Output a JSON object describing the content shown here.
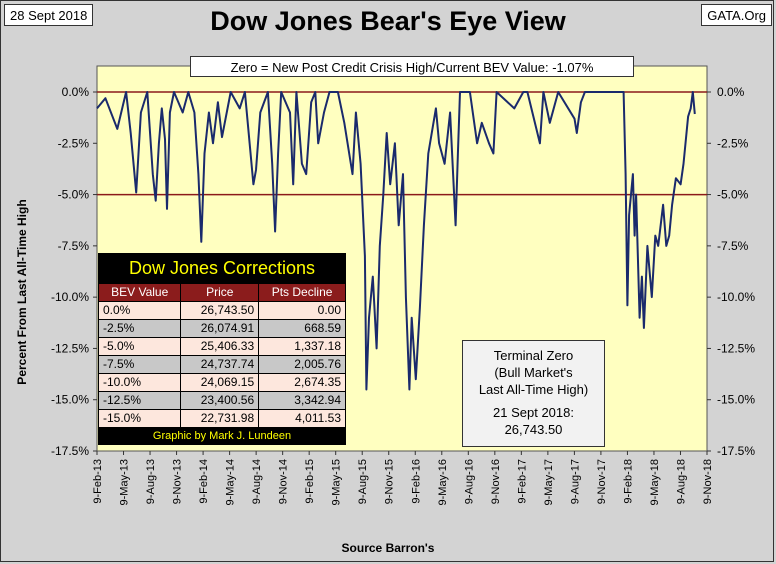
{
  "header": {
    "date": "28 Sept 2018",
    "title": "Dow Jones Bear's Eye View",
    "site": "GATA.Org",
    "subtitle": "Zero = New Post Credit Crisis High/Current BEV Value:  -1.07%"
  },
  "chart_data": {
    "type": "line",
    "title": "Dow Jones Bear's Eye View",
    "ylabel": "Percent From Last All-Time High",
    "xlabel": "Source Barron's",
    "ylim": [
      -17.5,
      0
    ],
    "yticks": [
      0,
      -2.5,
      -5,
      -7.5,
      -10,
      -12.5,
      -15,
      -17.5
    ],
    "ytick_labels": [
      "0.0%",
      "-2.5%",
      "-5.0%",
      "-7.5%",
      "-10.0%",
      "-12.5%",
      "-15.0%",
      "-17.5%"
    ],
    "xtick_labels": [
      "9-Feb-13",
      "9-May-13",
      "9-Aug-13",
      "9-Nov-13",
      "9-Feb-14",
      "9-May-14",
      "9-Aug-14",
      "9-Nov-14",
      "9-Feb-15",
      "9-May-15",
      "9-Aug-15",
      "9-Nov-15",
      "9-Feb-16",
      "9-May-16",
      "9-Aug-16",
      "9-Nov-16",
      "9-Feb-17",
      "9-May-17",
      "9-Aug-17",
      "9-Nov-17",
      "9-Feb-18",
      "9-May-18",
      "9-Aug-18",
      "9-Nov-18"
    ],
    "xlim": [
      "2013-02-09",
      "2018-11-09"
    ],
    "reference_lines": [
      0,
      -5
    ],
    "grid": false,
    "colors": {
      "background": "#ffffc0",
      "line": "#1a2a6c",
      "reference": "#8b1a1a"
    },
    "series": [
      {
        "values": [
          [
            "2013-02-09",
            -0.8
          ],
          [
            "2013-03-10",
            -0.3
          ],
          [
            "2013-04-20",
            -1.8
          ],
          [
            "2013-05-20",
            0
          ],
          [
            "2013-06-05",
            -2.0
          ],
          [
            "2013-06-24",
            -4.9
          ],
          [
            "2013-07-10",
            -1.0
          ],
          [
            "2013-08-01",
            0
          ],
          [
            "2013-08-20",
            -4.0
          ],
          [
            "2013-08-30",
            -5.3
          ],
          [
            "2013-09-10",
            -2.5
          ],
          [
            "2013-09-20",
            -0.8
          ],
          [
            "2013-10-01",
            -2.3
          ],
          [
            "2013-10-08",
            -5.7
          ],
          [
            "2013-10-18",
            -1.0
          ],
          [
            "2013-11-01",
            0
          ],
          [
            "2013-12-01",
            -1.0
          ],
          [
            "2013-12-20",
            0
          ],
          [
            "2014-01-10",
            -1.0
          ],
          [
            "2014-01-24",
            -4.0
          ],
          [
            "2014-02-03",
            -7.3
          ],
          [
            "2014-02-14",
            -3.0
          ],
          [
            "2014-03-01",
            -1.0
          ],
          [
            "2014-03-15",
            -2.5
          ],
          [
            "2014-04-01",
            -0.5
          ],
          [
            "2014-04-15",
            -2.2
          ],
          [
            "2014-05-15",
            0
          ],
          [
            "2014-06-15",
            -0.8
          ],
          [
            "2014-07-03",
            0
          ],
          [
            "2014-08-01",
            -4.5
          ],
          [
            "2014-08-10",
            -3.8
          ],
          [
            "2014-08-25",
            -1.0
          ],
          [
            "2014-09-20",
            0
          ],
          [
            "2014-10-05",
            -3.5
          ],
          [
            "2014-10-15",
            -6.8
          ],
          [
            "2014-10-25",
            -3.0
          ],
          [
            "2014-11-05",
            0
          ],
          [
            "2014-12-05",
            -1.0
          ],
          [
            "2014-12-16",
            -4.5
          ],
          [
            "2014-12-27",
            0
          ],
          [
            "2015-01-15",
            -3.5
          ],
          [
            "2015-01-30",
            -4.0
          ],
          [
            "2015-02-16",
            -0.5
          ],
          [
            "2015-03-02",
            0
          ],
          [
            "2015-03-12",
            -2.5
          ],
          [
            "2015-04-01",
            -1.0
          ],
          [
            "2015-04-20",
            0
          ],
          [
            "2015-05-19",
            0
          ],
          [
            "2015-06-10",
            -1.5
          ],
          [
            "2015-07-08",
            -4.0
          ],
          [
            "2015-07-20",
            -1.0
          ],
          [
            "2015-08-05",
            -3.5
          ],
          [
            "2015-08-20",
            -8.0
          ],
          [
            "2015-08-25",
            -14.5
          ],
          [
            "2015-09-03",
            -11.0
          ],
          [
            "2015-09-16",
            -9.0
          ],
          [
            "2015-09-29",
            -12.5
          ],
          [
            "2015-10-10",
            -7.5
          ],
          [
            "2015-10-22",
            -5.0
          ],
          [
            "2015-11-03",
            -2.0
          ],
          [
            "2015-11-15",
            -4.5
          ],
          [
            "2015-12-01",
            -2.5
          ],
          [
            "2015-12-14",
            -6.5
          ],
          [
            "2015-12-29",
            -4.0
          ],
          [
            "2016-01-08",
            -10.0
          ],
          [
            "2016-01-20",
            -14.5
          ],
          [
            "2016-01-28",
            -11.0
          ],
          [
            "2016-02-11",
            -14.0
          ],
          [
            "2016-02-25",
            -10.5
          ],
          [
            "2016-03-10",
            -6.5
          ],
          [
            "2016-03-25",
            -3.0
          ],
          [
            "2016-04-20",
            -0.8
          ],
          [
            "2016-05-01",
            -2.5
          ],
          [
            "2016-05-20",
            -3.5
          ],
          [
            "2016-06-08",
            -1.0
          ],
          [
            "2016-06-27",
            -6.5
          ],
          [
            "2016-07-05",
            -3.0
          ],
          [
            "2016-07-12",
            0
          ],
          [
            "2016-08-15",
            0
          ],
          [
            "2016-09-09",
            -2.5
          ],
          [
            "2016-09-25",
            -1.5
          ],
          [
            "2016-10-20",
            -2.5
          ],
          [
            "2016-11-04",
            -3.0
          ],
          [
            "2016-11-15",
            0
          ],
          [
            "2017-01-15",
            -0.8
          ],
          [
            "2017-02-15",
            0
          ],
          [
            "2017-03-01",
            0
          ],
          [
            "2017-04-13",
            -2.5
          ],
          [
            "2017-04-25",
            0
          ],
          [
            "2017-05-17",
            -1.5
          ],
          [
            "2017-06-15",
            0
          ],
          [
            "2017-08-10",
            -1.3
          ],
          [
            "2017-08-18",
            -2.0
          ],
          [
            "2017-09-01",
            -0.5
          ],
          [
            "2017-09-15",
            0
          ],
          [
            "2018-01-26",
            0
          ],
          [
            "2018-02-02",
            -4.0
          ],
          [
            "2018-02-08",
            -10.4
          ],
          [
            "2018-02-14",
            -6.0
          ],
          [
            "2018-02-27",
            -4.0
          ],
          [
            "2018-03-05",
            -7.0
          ],
          [
            "2018-03-10",
            -5.0
          ],
          [
            "2018-03-22",
            -11.0
          ],
          [
            "2018-03-30",
            -9.0
          ],
          [
            "2018-04-06",
            -11.5
          ],
          [
            "2018-04-18",
            -7.5
          ],
          [
            "2018-05-03",
            -10.0
          ],
          [
            "2018-05-15",
            -7.0
          ],
          [
            "2018-05-25",
            -7.5
          ],
          [
            "2018-06-11",
            -5.5
          ],
          [
            "2018-06-22",
            -7.5
          ],
          [
            "2018-07-02",
            -7.0
          ],
          [
            "2018-07-12",
            -5.5
          ],
          [
            "2018-07-25",
            -4.2
          ],
          [
            "2018-08-10",
            -4.5
          ],
          [
            "2018-08-20",
            -3.5
          ],
          [
            "2018-09-05",
            -1.2
          ],
          [
            "2018-09-14",
            -0.8
          ],
          [
            "2018-09-21",
            0
          ],
          [
            "2018-09-28",
            -1.07
          ]
        ]
      }
    ]
  },
  "corrections_table": {
    "title": "Dow Jones Corrections",
    "headers": [
      "BEV Value",
      "Price",
      "Pts Decline"
    ],
    "rows": [
      [
        "0.0%",
        "26,743.50",
        "0.00"
      ],
      [
        "-2.5%",
        "26,074.91",
        "668.59"
      ],
      [
        "-5.0%",
        "25,406.33",
        "1,337.18"
      ],
      [
        "-7.5%",
        "24,737.74",
        "2,005.76"
      ],
      [
        "-10.0%",
        "24,069.15",
        "2,674.35"
      ],
      [
        "-12.5%",
        "23,400.56",
        "3,342.94"
      ],
      [
        "-15.0%",
        "22,731.98",
        "4,011.53"
      ]
    ],
    "credit": "Graphic by Mark J. Lundeen"
  },
  "terminal_box": {
    "line1": "Terminal Zero",
    "line2": "(Bull Market's",
    "line3": "Last All-Time High)",
    "line4": "21 Sept 2018:",
    "line5": "26,743.50"
  }
}
